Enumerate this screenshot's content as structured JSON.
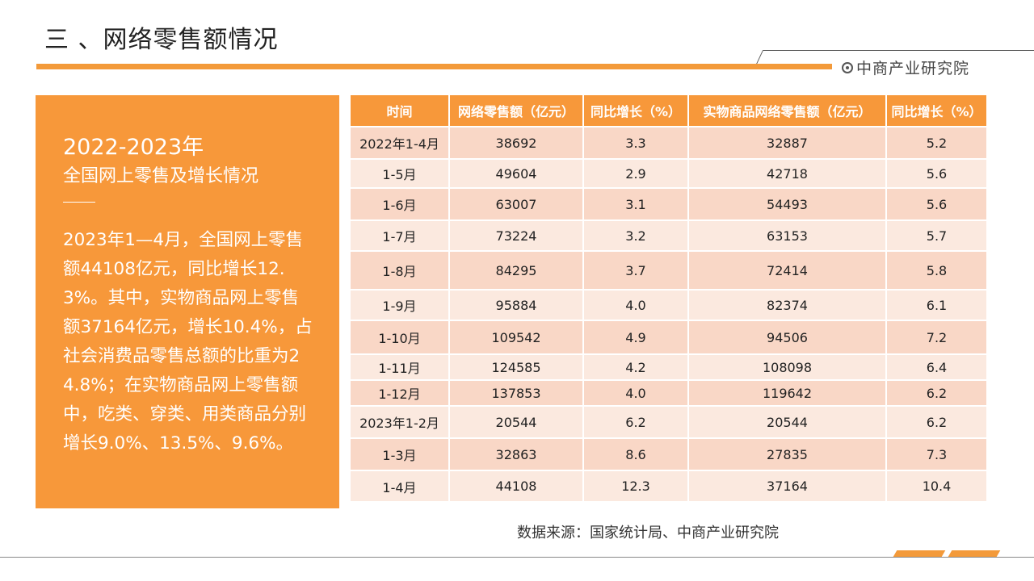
{
  "header": {
    "title": "三 、网络零售额情况",
    "logo_text": "中商产业研究院",
    "logo_icon": "circle-dot-icon"
  },
  "panel": {
    "title_line1": "2022-2023年",
    "title_line2": "全国网上零售及增长情况",
    "body": "2023年1—4月，全国网上零售额44108亿元，同比增长12.3%。其中，实物商品网上零售额37164亿元，增长10.4%，占社会消费品零售总额的比重为24.8%；在实物商品网上零售额中，吃类、穿类、用类商品分别增长9.0%、13.5%、9.6%。"
  },
  "table": {
    "headers": [
      "时间",
      "网络零售额（亿元）",
      "同比增长（%）",
      "实物商品网络零售额（亿元）",
      "同比增长（%）"
    ],
    "rows": [
      [
        "2022年1-4月",
        "38692",
        "3.3",
        "32887",
        "5.2"
      ],
      [
        "1-5月",
        "49604",
        "2.9",
        "42718",
        "5.6"
      ],
      [
        "1-6月",
        "63007",
        "3.1",
        "54493",
        "5.6"
      ],
      [
        "1-7月",
        "73224",
        "3.2",
        "63153",
        "5.7"
      ],
      [
        "1-8月",
        "84295",
        "3.7",
        "72414",
        "5.8"
      ],
      [
        "1-9月",
        "95884",
        "4.0",
        "82374",
        "6.1"
      ],
      [
        "1-10月",
        "109542",
        "4.9",
        "94506",
        "7.2"
      ],
      [
        "1-11月",
        "124585",
        "4.2",
        "108098",
        "6.4"
      ],
      [
        "1-12月",
        "137853",
        "4.0",
        "119642",
        "6.2"
      ],
      [
        "2023年1-2月",
        "20544",
        "6.2",
        "20544",
        "6.2"
      ],
      [
        "1-3月",
        "32863",
        "8.6",
        "27835",
        "7.3"
      ],
      [
        "1-4月",
        "44108",
        "12.3",
        "37164",
        "10.4"
      ]
    ]
  },
  "source": "数据来源：国家统计局、中商产业研究院",
  "colors": {
    "accent": "#f7983a",
    "row_dark": "#f9d7c6",
    "row_light": "#fbe9df"
  }
}
